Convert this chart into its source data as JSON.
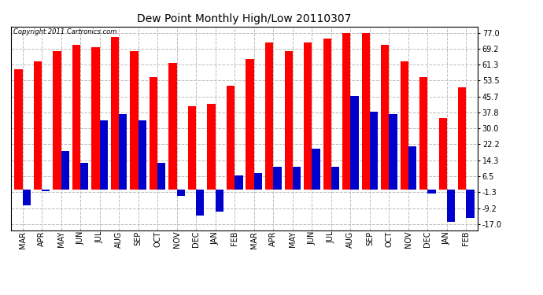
{
  "title": "Dew Point Monthly High/Low 20110307",
  "copyright": "Copyright 2011 Cartronics.com",
  "months": [
    "MAR",
    "APR",
    "MAY",
    "JUN",
    "JUL",
    "AUG",
    "SEP",
    "OCT",
    "NOV",
    "DEC",
    "JAN",
    "FEB",
    "MAR",
    "APR",
    "MAY",
    "JUN",
    "JUL",
    "AUG",
    "SEP",
    "OCT",
    "NOV",
    "DEC",
    "JAN",
    "FEB"
  ],
  "highs": [
    59,
    63,
    68,
    71,
    70,
    75,
    68,
    55,
    62,
    41,
    42,
    51,
    64,
    72,
    68,
    72,
    74,
    77,
    77,
    71,
    63,
    55,
    35,
    50
  ],
  "lows": [
    -8,
    -1,
    19,
    13,
    34,
    37,
    34,
    13,
    -3,
    -13,
    -11,
    7,
    8,
    11,
    11,
    20,
    11,
    46,
    38,
    37,
    21,
    -2,
    -16,
    -14
  ],
  "high_color": "#ff0000",
  "low_color": "#0000cc",
  "bg_color": "#ffffff",
  "ytick_values": [
    -17.0,
    -9.2,
    -1.3,
    6.5,
    14.3,
    22.2,
    30.0,
    37.8,
    45.7,
    53.5,
    61.3,
    69.2,
    77.0
  ],
  "ylim": [
    -20,
    80
  ],
  "bar_width": 0.42,
  "title_fontsize": 10,
  "tick_fontsize": 7,
  "copyright_fontsize": 6
}
